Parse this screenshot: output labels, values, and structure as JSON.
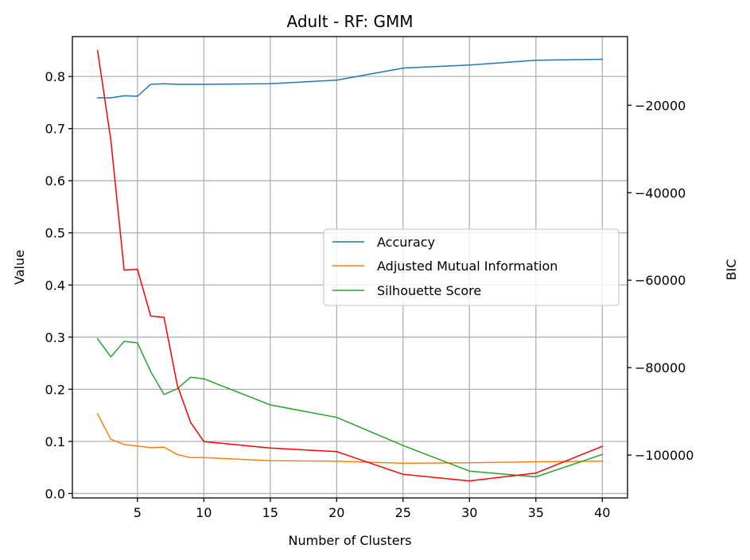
{
  "chart_data": {
    "type": "line",
    "title": "Adult - RF: GMM",
    "xlabel": "Number of Clusters",
    "ylabel": "Value",
    "y2label": "BIC",
    "x": [
      2,
      3,
      4,
      5,
      6,
      7,
      8,
      9,
      10,
      15,
      20,
      25,
      30,
      35,
      40
    ],
    "xlim": [
      0.1,
      41.9
    ],
    "ylim": [
      -0.0085,
      0.8765
    ],
    "y2lim": [
      -109800,
      -4300
    ],
    "xticks": [
      5,
      10,
      15,
      20,
      25,
      30,
      35,
      40
    ],
    "yticks": [
      0.0,
      0.1,
      0.2,
      0.3,
      0.4,
      0.5,
      0.6,
      0.7,
      0.8
    ],
    "y2ticks": [
      -100000,
      -80000,
      -60000,
      -40000,
      -20000
    ],
    "xtick_labels": [
      "5",
      "10",
      "15",
      "20",
      "25",
      "30",
      "35",
      "40"
    ],
    "ytick_labels": [
      "0.0",
      "0.1",
      "0.2",
      "0.3",
      "0.4",
      "0.5",
      "0.6",
      "0.7",
      "0.8"
    ],
    "y2tick_labels": [
      "−100000",
      "−80000",
      "−60000",
      "−40000",
      "−20000"
    ],
    "grid": true,
    "legend_position": "center-right",
    "series": [
      {
        "name": "Accuracy",
        "axis": "left",
        "color": "#1f77b4",
        "values": [
          0.759,
          0.759,
          0.763,
          0.762,
          0.785,
          0.786,
          0.785,
          0.785,
          0.785,
          0.786,
          0.793,
          0.816,
          0.822,
          0.831,
          0.833
        ]
      },
      {
        "name": "Adjusted Mutual Information",
        "axis": "left",
        "color": "#ff7f0e",
        "values": [
          0.153,
          0.104,
          0.094,
          0.091,
          0.088,
          0.089,
          0.075,
          0.069,
          0.069,
          0.063,
          0.062,
          0.058,
          0.059,
          0.061,
          0.062
        ]
      },
      {
        "name": "Silhouette Score",
        "axis": "left",
        "color": "#2ca02c",
        "values": [
          0.297,
          0.262,
          0.292,
          0.289,
          0.234,
          0.19,
          0.201,
          0.223,
          0.22,
          0.17,
          0.146,
          0.092,
          0.043,
          0.032,
          0.075
        ]
      },
      {
        "name": "BIC",
        "axis": "right",
        "color": "#ff0000",
        "values": [
          -7500,
          -28000,
          -57700,
          -57500,
          -68200,
          -68500,
          -84000,
          -92500,
          -96900,
          -98400,
          -99200,
          -104400,
          -105900,
          -104100,
          -98000
        ]
      }
    ],
    "legend": [
      "Accuracy",
      "Adjusted Mutual Information",
      "Silhouette Score"
    ]
  }
}
